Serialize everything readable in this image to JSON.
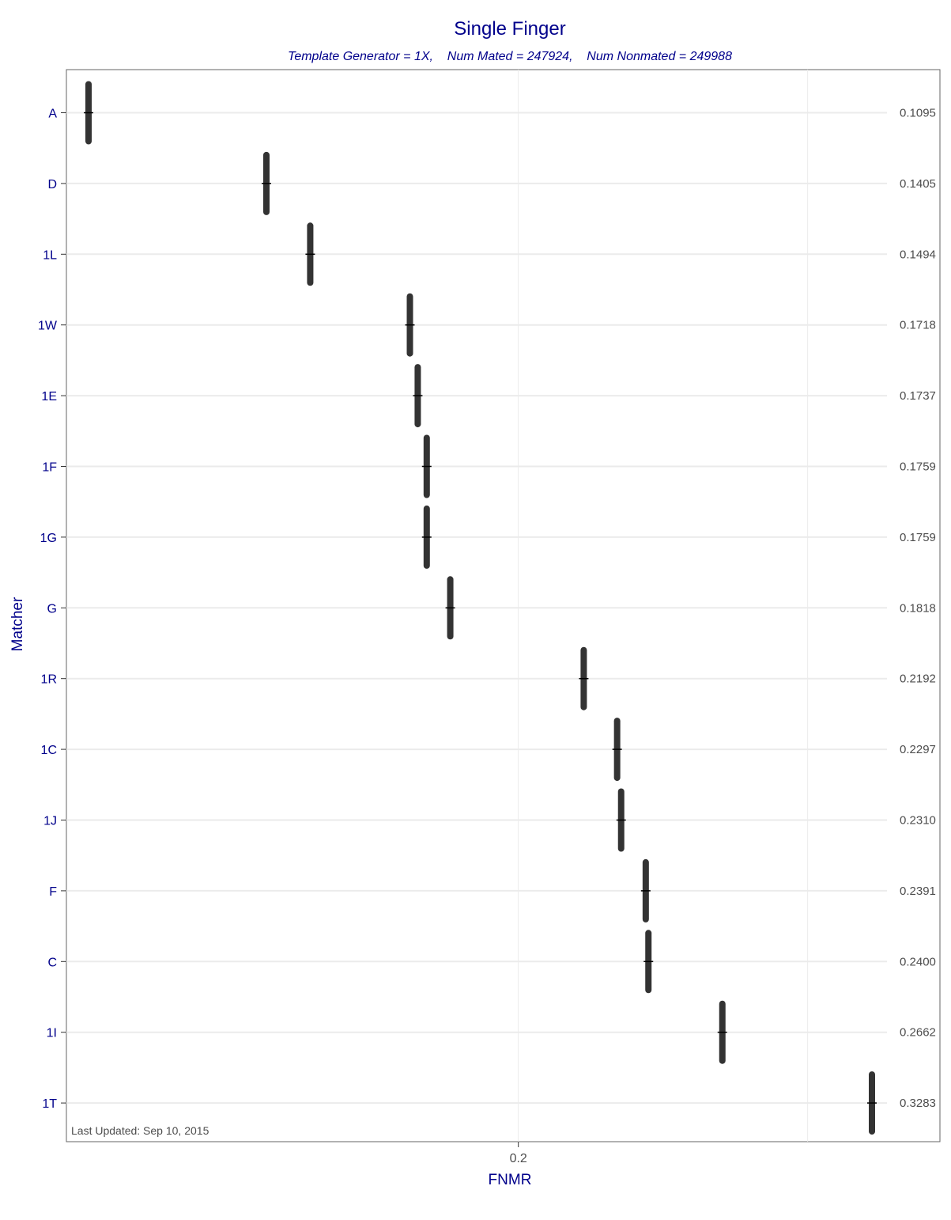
{
  "chart_data": {
    "type": "errorbar",
    "title": "Single Finger",
    "subtitle": "Template Generator = 1X,    Num Mated = 247924,    Num Nonmated = 249988",
    "xlabel": "FNMR",
    "ylabel": "Matcher",
    "x_ticks": [
      0.2
    ],
    "x_tick_labels": [
      "0.2"
    ],
    "x_scale": "log",
    "xlim": [
      0.107,
      0.335
    ],
    "grid": true,
    "note": "Last Updated: Sep 10, 2015",
    "categories": [
      "A",
      "D",
      "1L",
      "1W",
      "1E",
      "1F",
      "1G",
      "G",
      "1R",
      "1C",
      "1J",
      "F",
      "C",
      "1I",
      "1T"
    ],
    "values": [
      0.1095,
      0.1405,
      0.1494,
      0.1718,
      0.1737,
      0.1759,
      0.1759,
      0.1818,
      0.2192,
      0.2297,
      0.231,
      0.2391,
      0.24,
      0.2662,
      0.3283
    ],
    "value_labels": [
      "0.1095",
      "0.1405",
      "0.1494",
      "0.1718",
      "0.1737",
      "0.1759",
      "0.1759",
      "0.1818",
      "0.2192",
      "0.2297",
      "0.2310",
      "0.2391",
      "0.2400",
      "0.2662",
      "0.3283"
    ]
  }
}
